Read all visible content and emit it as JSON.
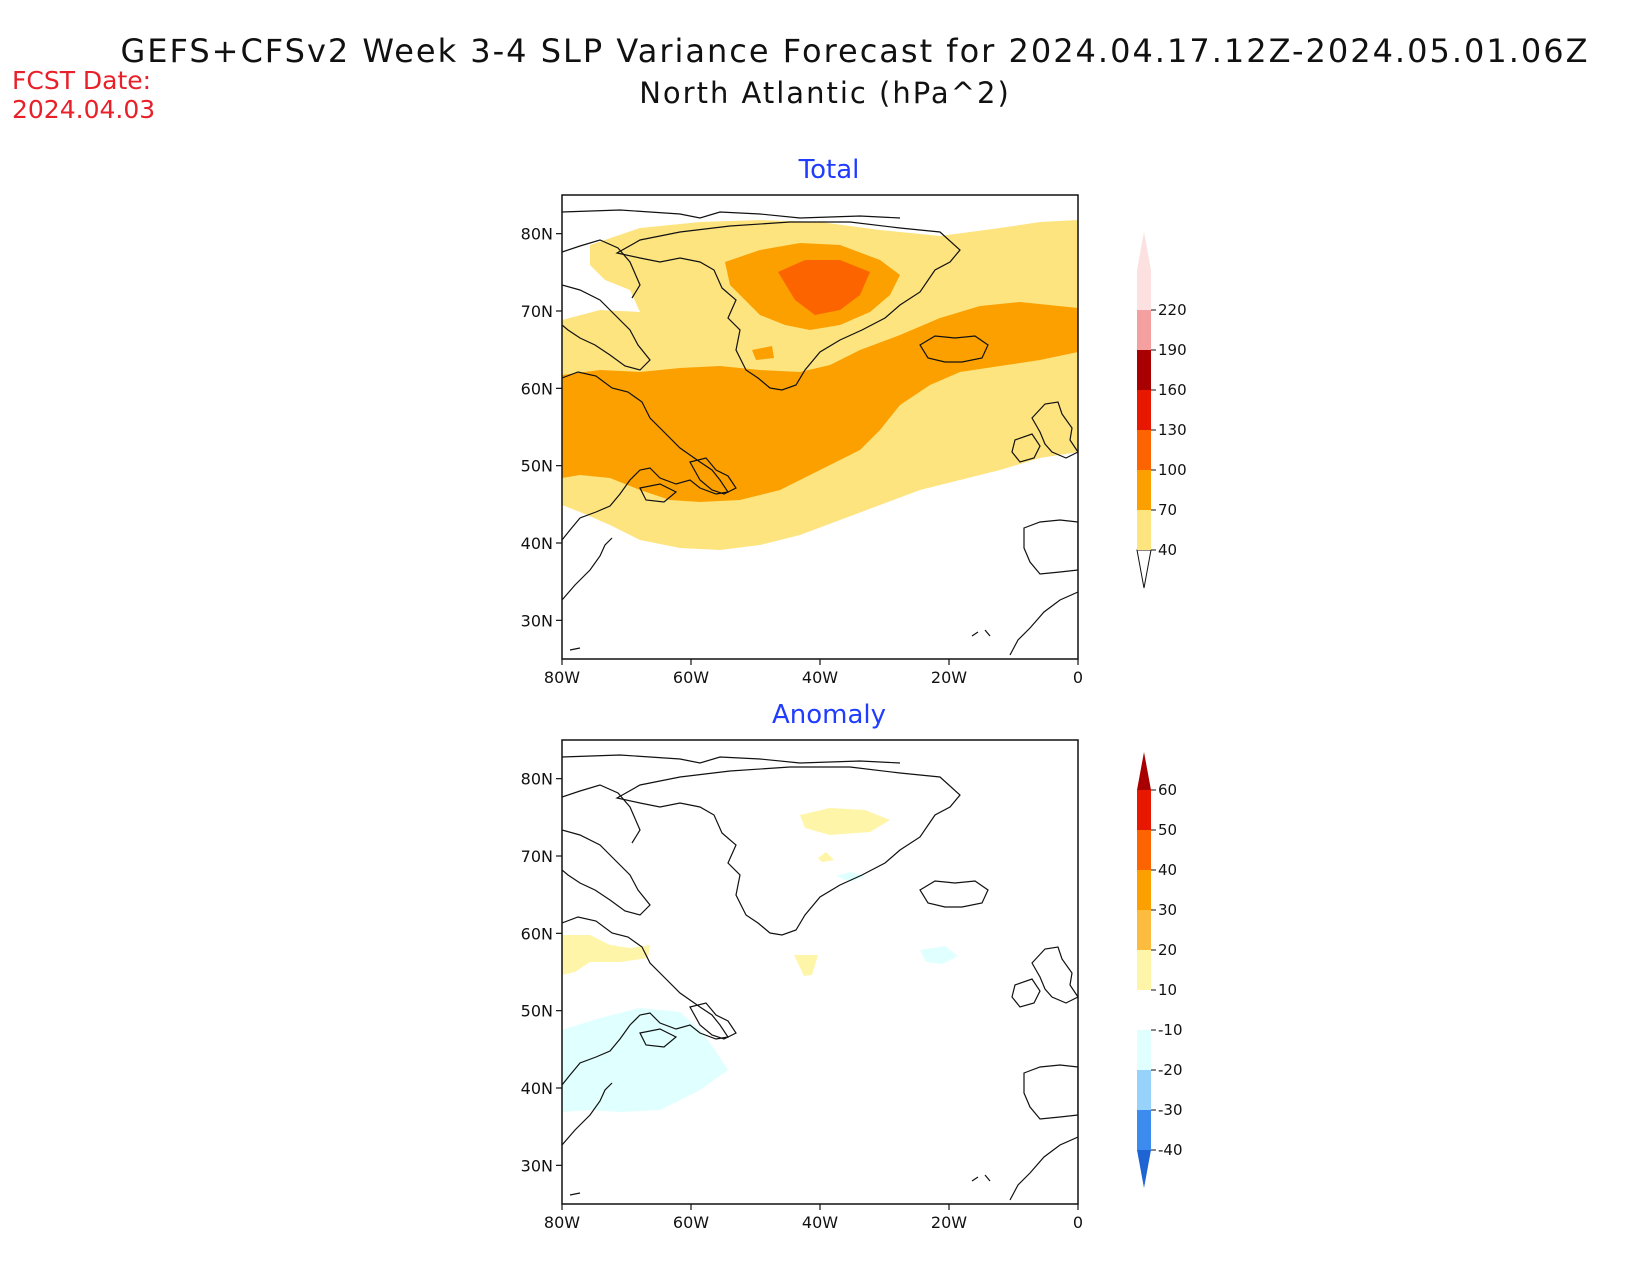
{
  "header": {
    "title": "GEFS+CFSv2 Week 3-4 SLP Variance Forecast for 2024.04.17.12Z-2024.05.01.06Z",
    "subtitle": "North Atlantic (hPa^2)",
    "fcst_label": "FCST Date:",
    "fcst_date": "2024.04.03"
  },
  "axes": {
    "lat_labels": [
      "80N",
      "70N",
      "60N",
      "50N",
      "40N",
      "30N"
    ],
    "lon_labels": [
      "80W",
      "60W",
      "40W",
      "20W",
      "0"
    ]
  },
  "panels": [
    {
      "title": "Total",
      "colorbar": {
        "levels": [
          "40",
          "70",
          "100",
          "130",
          "160",
          "190",
          "220"
        ],
        "colors": [
          "#fde47f",
          "#fca000",
          "#fc6400",
          "#e81800",
          "#a80000",
          "#f4a0a0",
          "#fde0e0"
        ]
      }
    },
    {
      "title": "Anomaly",
      "colorbar": {
        "levels": [
          "60",
          "50",
          "40",
          "30",
          "20",
          "10",
          "-10",
          "-20",
          "-30",
          "-40"
        ],
        "colors": [
          "#a80000",
          "#e81800",
          "#fc6400",
          "#fca000",
          "#fcbc40",
          "#fff5a8",
          "#ffffff",
          "#e0ffff",
          "#96d2fa",
          "#3c8cf0",
          "#1e64d2"
        ]
      }
    }
  ]
}
